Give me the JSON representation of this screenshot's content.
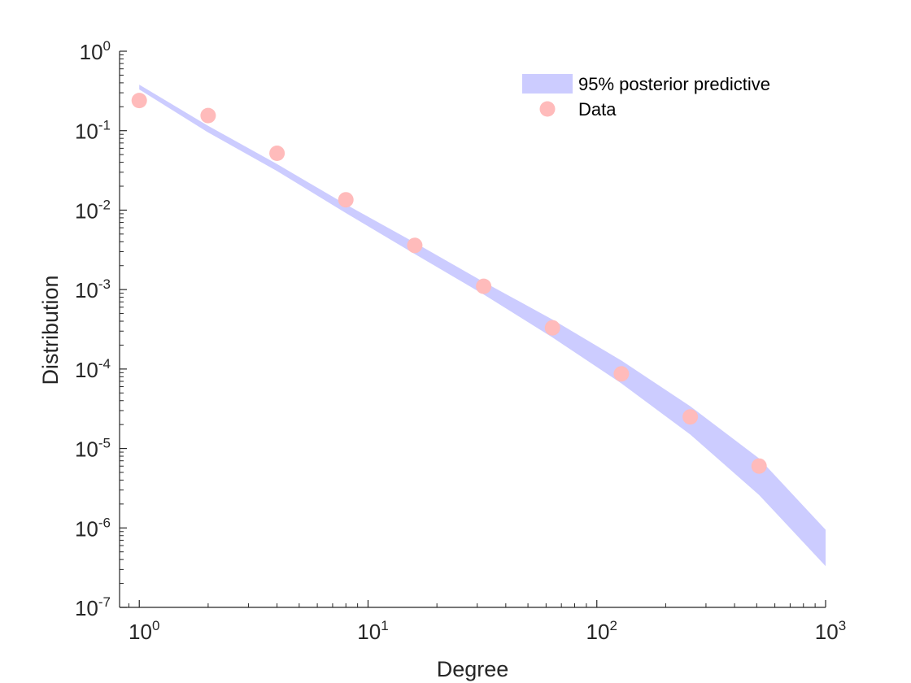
{
  "chart_data": {
    "type": "scatter",
    "title": "",
    "xlabel": "Degree",
    "ylabel": "Distribution",
    "xscale": "log",
    "yscale": "log",
    "xlim": [
      0.82,
      1000
    ],
    "ylim": [
      1e-07,
      1
    ],
    "x_ticks": [
      1,
      10,
      100,
      1000
    ],
    "y_ticks": [
      1e-07,
      1e-06,
      1e-05,
      0.0001,
      0.001,
      0.01,
      0.1,
      1
    ],
    "x_tick_labels": [
      {
        "base": "10",
        "exp": "0"
      },
      {
        "base": "10",
        "exp": "1"
      },
      {
        "base": "10",
        "exp": "2"
      },
      {
        "base": "10",
        "exp": "3"
      }
    ],
    "y_tick_labels": [
      {
        "base": "10",
        "exp": "-7"
      },
      {
        "base": "10",
        "exp": "-6"
      },
      {
        "base": "10",
        "exp": "-5"
      },
      {
        "base": "10",
        "exp": "-4"
      },
      {
        "base": "10",
        "exp": "-3"
      },
      {
        "base": "10",
        "exp": "-2"
      },
      {
        "base": "10",
        "exp": "-1"
      },
      {
        "base": "10",
        "exp": "0"
      }
    ],
    "grid": false,
    "legend_position": "top-right",
    "band": {
      "name": "95% posterior predictive",
      "color": "#ccccff",
      "x": [
        1,
        2,
        4,
        8,
        16,
        32,
        64,
        128,
        256,
        512,
        1000
      ],
      "lower": [
        0.33,
        0.095,
        0.031,
        0.0092,
        0.0028,
        0.00087,
        0.00025,
        6.6e-05,
        1.5e-05,
        2.6e-06,
        3.3e-07
      ],
      "upper": [
        0.38,
        0.115,
        0.038,
        0.0118,
        0.0039,
        0.00125,
        0.00042,
        0.000128,
        3.4e-05,
        7.5e-06,
        9.5e-07
      ]
    },
    "series": [
      {
        "name": "Data",
        "color": "#ffbbbb",
        "x": [
          1,
          2,
          4,
          8,
          16,
          32,
          64,
          128,
          256,
          512
        ],
        "y": [
          0.24,
          0.155,
          0.052,
          0.0135,
          0.0036,
          0.0011,
          0.00033,
          8.7e-05,
          2.5e-05,
          6e-06
        ]
      }
    ]
  }
}
